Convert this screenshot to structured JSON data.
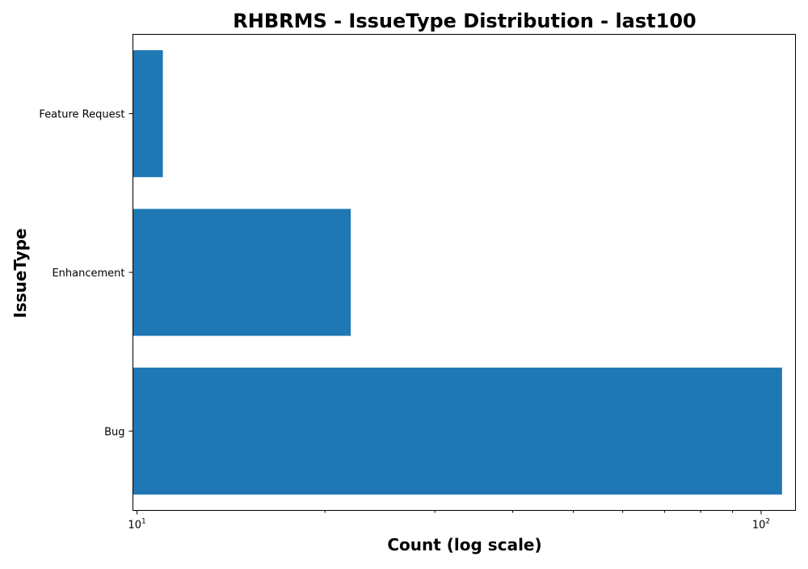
{
  "chart_data": {
    "type": "bar",
    "orientation": "horizontal",
    "title": "RHBRMS - IssueType Distribution - last100",
    "xlabel": "Count (log scale)",
    "ylabel": "IssueType",
    "x_scale": "log",
    "xlim": [
      9.85,
      113.5
    ],
    "x_major_ticks": [
      {
        "value": 10,
        "base": "10",
        "exp": "1"
      },
      {
        "value": 100,
        "base": "10",
        "exp": "2"
      }
    ],
    "x_minor_ticks": [
      20,
      30,
      40,
      50,
      60,
      70,
      80,
      90
    ],
    "grid": false,
    "legend": "none",
    "categories": [
      "Bug",
      "Enhancement",
      "Feature Request"
    ],
    "values": [
      108,
      22,
      11
    ],
    "bar_color": "#1f77b4"
  }
}
